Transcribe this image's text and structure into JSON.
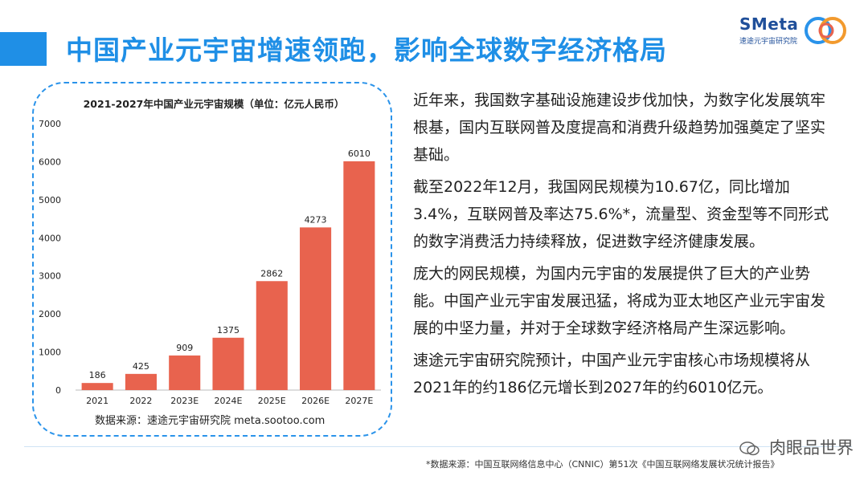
{
  "header": {
    "title": "中国产业元宇宙增速领跑，影响全球数字经济格局"
  },
  "logo": {
    "text": "SMeta",
    "subtitle": "速途元宇宙研究院"
  },
  "chart_data": {
    "type": "bar",
    "title": "2021-2027年中国产业元宇宙规模（单位：亿元人民币）",
    "categories": [
      "2021",
      "2022",
      "2023E",
      "2024E",
      "2025E",
      "2026E",
      "2027E"
    ],
    "values": [
      186,
      425,
      909,
      1375,
      2862,
      4273,
      6010
    ],
    "data_labels": [
      "186",
      "425",
      "909",
      "1375",
      "2862",
      "4273",
      "6010"
    ],
    "yticks": [
      0,
      1000,
      2000,
      3000,
      4000,
      5000,
      6000,
      7000
    ],
    "ylim": [
      0,
      7000
    ],
    "xlabel": "",
    "ylabel": "",
    "bar_color": "#e8634e",
    "grid": false,
    "source": "数据来源：速途元宇宙研究院 meta.sootoo.com"
  },
  "paragraphs": [
    "近年来，我国数字基础设施建设步伐加快，为数字化发展筑牢根基，国内互联网普及度提高和消费升级趋势加强奠定了坚实基础。",
    "截至2022年12月，我国网民规模为10.67亿，同比增加3.4%，互联网普及率达75.6%*，流量型、资金型等不同形式的数字消费活力持续释放，促进数字经济健康发展。",
    "庞大的网民规模，为国内元宇宙的发展提供了巨大的产业势能。中国产业元宇宙发展迅猛，将成为亚太地区产业元宇宙发展的中坚力量，并对于全球数字经济格局产生深远影响。",
    "速途元宇宙研究院预计，中国产业元宇宙核心市场规模将从2021年的约186亿元增长到2027年的约6010亿元。"
  ],
  "footnote": "*数据来源：中国互联网络信息中心（CNNIC）第51次《中国互联网络发展状况统计报告》",
  "watermark": {
    "text": "肉眼品世界",
    "icon": "wechat-icon"
  },
  "colors": {
    "accent": "#1f8fe6",
    "bar": "#e8634e"
  }
}
